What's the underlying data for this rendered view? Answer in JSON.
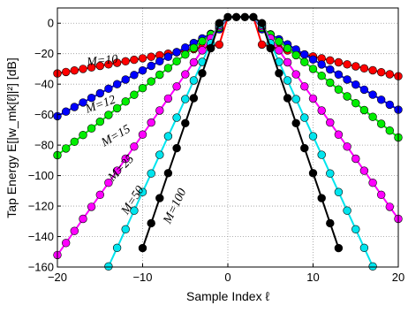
{
  "chart_data": {
    "type": "line",
    "xlabel": "Sample Index ℓ",
    "ylabel": "Tap Energy E[|w_mk[ℓ]|²] [dB]",
    "xlim": [
      -20,
      20
    ],
    "ylim": [
      -160,
      10
    ],
    "xticks": [
      -20,
      -10,
      0,
      10,
      20
    ],
    "yticks": [
      0,
      -20,
      -40,
      -60,
      -80,
      -100,
      -120,
      -140,
      -160
    ],
    "grid": true,
    "legend": "none",
    "flat_top": {
      "x": [
        0,
        1,
        2,
        3
      ],
      "y": [
        4,
        4,
        4,
        4
      ]
    },
    "series": [
      {
        "name": "M=10",
        "color": "#ff0000",
        "peak": -14,
        "slope_left": 1.0,
        "slope_right": 1.3,
        "label": "M=10",
        "label_x": -16.5,
        "label_y": -28,
        "label_angle": -6
      },
      {
        "name": "M=12",
        "color": "#0000ff",
        "peak": -4,
        "slope_left": 3.0,
        "slope_right": 3.3,
        "label": "M=12",
        "label_x": -16.5,
        "label_y": -59,
        "label_angle": -20
      },
      {
        "name": "M=15",
        "color": "#00ee00",
        "peak": -3,
        "slope_left": 4.4,
        "slope_right": 4.5,
        "label": "M=15",
        "label_x": -14.5,
        "label_y": -81,
        "label_angle": -30
      },
      {
        "name": "M=25",
        "color": "#ff00ff",
        "peak": -2,
        "slope_left": 7.9,
        "slope_right": 7.9,
        "label": "M=25",
        "label_x": -13.5,
        "label_y": -104,
        "label_angle": -46
      },
      {
        "name": "M=50",
        "color": "#00e5ee",
        "peak": -1,
        "slope_left": 12.2,
        "slope_right": 12.2,
        "label": "M=50",
        "label_x": -11.8,
        "label_y": -126,
        "label_angle": -57
      },
      {
        "name": "M=100",
        "color": "#000000",
        "peak": 0,
        "slope_left": 16.4,
        "slope_right": 16.4,
        "label": "M=100",
        "label_x": -6.8,
        "label_y": -132,
        "label_angle": -64
      }
    ]
  }
}
